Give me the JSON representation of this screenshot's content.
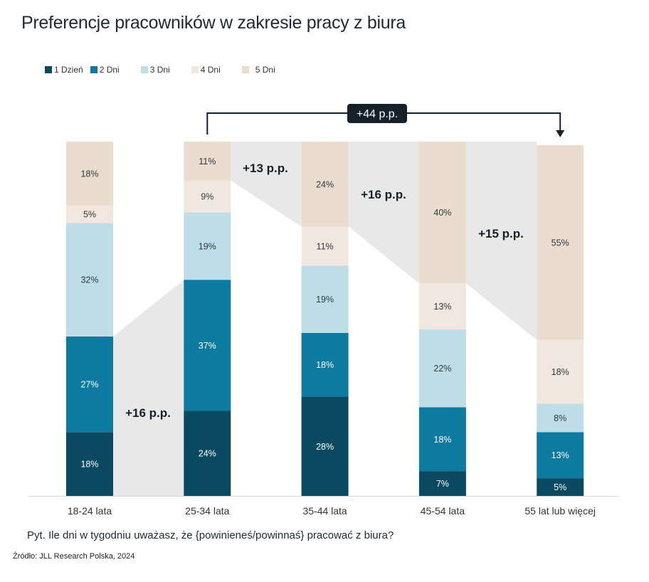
{
  "title": "Preferencje pracowników w zakresie pracy z biura",
  "question": "Pyt. Ile dni w tygodniu uważasz, że {powinieneś/powinnaś} pracować z biura?",
  "source": "Źródło: JLL Research Polska, 2024",
  "colors": {
    "1 Dzień": "#0a4a60",
    "2 Dni": "#0e7aa0",
    "3 Dni": "#bfdde7",
    "4 Dni": "#f2e7de",
    "5 Dni": "#eadccf",
    "band": "#e8e8e8",
    "annotation": "#15202b"
  },
  "legend": [
    {
      "label": "1 Dzień",
      "color": "#0a4a60"
    },
    {
      "label": "2 Dni",
      "color": "#0e7aa0"
    },
    {
      "label": "3 Dni",
      "color": "#bfdde7"
    },
    {
      "label": "4 Dni",
      "color": "#f2e7de"
    },
    {
      "label": "5 Dni",
      "color": "#eadccf"
    }
  ],
  "chart_data": {
    "type": "bar",
    "stacked": true,
    "title": "Preferencje pracowników w zakresie pracy z biura",
    "xlabel": "",
    "ylabel": "",
    "ylim": [
      0,
      100
    ],
    "unit": "%",
    "legend_position": "top-left",
    "categories": [
      "18-24 lata",
      "25-34 lata",
      "35-44 lata",
      "45-54 lata",
      "55 lat lub więcej"
    ],
    "series": [
      {
        "name": "1 Dzień",
        "values": [
          18,
          24,
          28,
          7,
          5
        ]
      },
      {
        "name": "2 Dni",
        "values": [
          27,
          37,
          18,
          18,
          13
        ]
      },
      {
        "name": "3 Dni",
        "values": [
          32,
          19,
          19,
          22,
          8
        ]
      },
      {
        "name": "4 Dni",
        "values": [
          5,
          9,
          11,
          13,
          18
        ]
      },
      {
        "name": "5 Dni",
        "values": [
          18,
          11,
          24,
          40,
          55
        ]
      }
    ],
    "annotations": [
      {
        "label": "+16 p.p.",
        "from": "18-24 lata",
        "to": "25-34 lata",
        "metric": "1 Dzień + 2 Dni"
      },
      {
        "label": "+13 p.p.",
        "from": "25-34 lata",
        "to": "35-44 lata",
        "metric": "5 Dni"
      },
      {
        "label": "+16 p.p.",
        "from": "35-44 lata",
        "to": "45-54 lata",
        "metric": "5 Dni"
      },
      {
        "label": "+15 p.p.",
        "from": "45-54 lata",
        "to": "55 lat lub więcej",
        "metric": "5 Dni"
      },
      {
        "label": "+44 p.p.",
        "from": "25-34 lata",
        "to": "55 lat lub więcej",
        "metric": "5 Dni",
        "style": "bracket"
      }
    ]
  }
}
